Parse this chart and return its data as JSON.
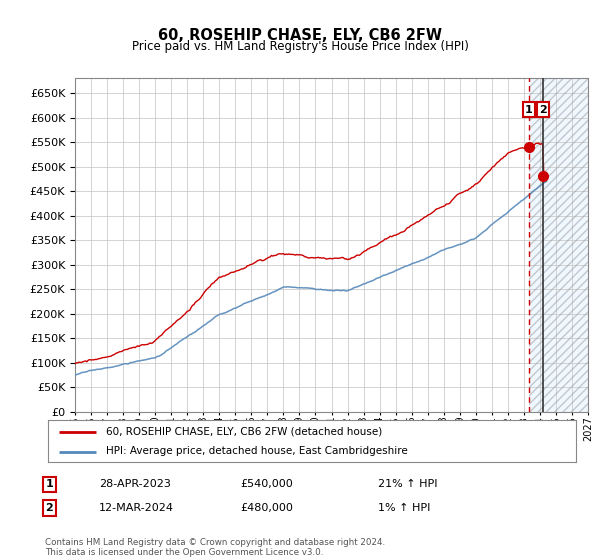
{
  "title": "60, ROSEHIP CHASE, ELY, CB6 2FW",
  "subtitle": "Price paid vs. HM Land Registry's House Price Index (HPI)",
  "legend_label_red": "60, ROSEHIP CHASE, ELY, CB6 2FW (detached house)",
  "legend_label_blue": "HPI: Average price, detached house, East Cambridgeshire",
  "table_rows": [
    {
      "num": "1",
      "date": "28-APR-2023",
      "price": "£540,000",
      "hpi": "21% ↑ HPI"
    },
    {
      "num": "2",
      "date": "12-MAR-2024",
      "price": "£480,000",
      "hpi": "1% ↑ HPI"
    }
  ],
  "footnote": "Contains HM Land Registry data © Crown copyright and database right 2024.\nThis data is licensed under the Open Government Licence v3.0.",
  "sale1_year": 2023.32,
  "sale1_price": 540000,
  "sale2_year": 2024.21,
  "sale2_price": 480000,
  "forecast_start_year": 2023.32,
  "forecast_end_year": 2027.0,
  "ylim_min": 0,
  "ylim_max": 680000,
  "ytick_step": 50000,
  "xmin": 1995.0,
  "xmax": 2027.0,
  "red_color": "#cc0000",
  "blue_color": "#5588bb",
  "forecast_fill_color": "#ddeeff",
  "dashed_line_color": "#cc0000",
  "background_color": "#ffffff",
  "grid_color": "#cccccc",
  "hatch_color": "#aaaaaa"
}
